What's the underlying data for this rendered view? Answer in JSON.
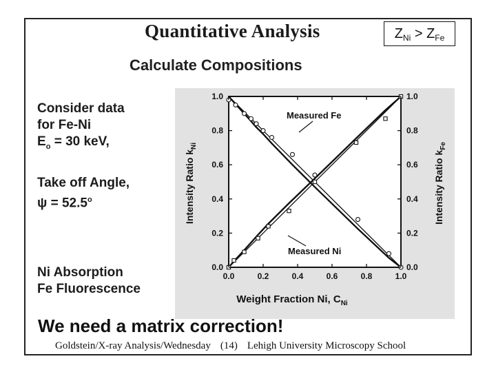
{
  "slide": {
    "title": "Quantitative Analysis",
    "z_relation": {
      "left": "Z",
      "left_sub": "Ni",
      "op": " > ",
      "right": "Z",
      "right_sub": "Fe"
    },
    "subtitle": "Calculate Compositions",
    "side_text": {
      "line1": "Consider data",
      "line2": "for Fe-Ni",
      "e0_prefix": "E",
      "e0_sub": "o",
      "e0_value": " = 30 keV,",
      "line4": "Take off Angle,",
      "psi_prefix": "ψ = 52.5",
      "psi_sup": "o",
      "line6": "Ni Absorption",
      "line7": "Fe Fluorescence"
    },
    "conclusion": "We need a matrix correction!",
    "footer": {
      "left": "Goldstein/X-ray Analysis/Wednesday",
      "page": "(14)",
      "right": "Lehigh University Microscopy School"
    }
  },
  "chart_data": {
    "type": "line",
    "x_label": "Weight Fraction Ni, C",
    "x_label_sub": "Ni",
    "y_label_left": "Intensity Ratio k",
    "y_label_left_sub": "Ni",
    "y_label_right": "Intensity Ratio k",
    "y_label_right_sub": "Fe",
    "xlim": [
      0,
      1
    ],
    "ylim": [
      0,
      1
    ],
    "x_ticks": [
      "0.0",
      "0.2",
      "0.4",
      "0.6",
      "0.8",
      "1.0"
    ],
    "y_ticks": [
      "0.0",
      "0.2",
      "0.4",
      "0.6",
      "0.8",
      "1.0"
    ],
    "series": [
      {
        "name": "Measured Fe",
        "marker": "circle",
        "x": [
          0.0,
          0.04,
          0.09,
          0.13,
          0.16,
          0.2,
          0.25,
          0.37,
          0.5,
          0.75,
          0.93,
          1.0
        ],
        "y": [
          0.98,
          0.95,
          0.9,
          0.87,
          0.84,
          0.8,
          0.76,
          0.66,
          0.54,
          0.28,
          0.08,
          0.0
        ],
        "fit_y": [
          1.0,
          0.955,
          0.9,
          0.855,
          0.82,
          0.78,
          0.725,
          0.6,
          0.47,
          0.225,
          0.055,
          0.0
        ]
      },
      {
        "name": "Measured Ni",
        "marker": "square",
        "x": [
          0.0,
          0.03,
          0.09,
          0.17,
          0.23,
          0.35,
          0.5,
          0.74,
          0.91,
          1.0
        ],
        "y": [
          0.0,
          0.04,
          0.09,
          0.17,
          0.24,
          0.33,
          0.5,
          0.73,
          0.87,
          1.0
        ],
        "fit_y": [
          0.0,
          0.035,
          0.1,
          0.19,
          0.255,
          0.375,
          0.52,
          0.755,
          0.92,
          1.0
        ]
      }
    ],
    "annotations": [
      "Measured Fe",
      "Measured Ni"
    ]
  }
}
